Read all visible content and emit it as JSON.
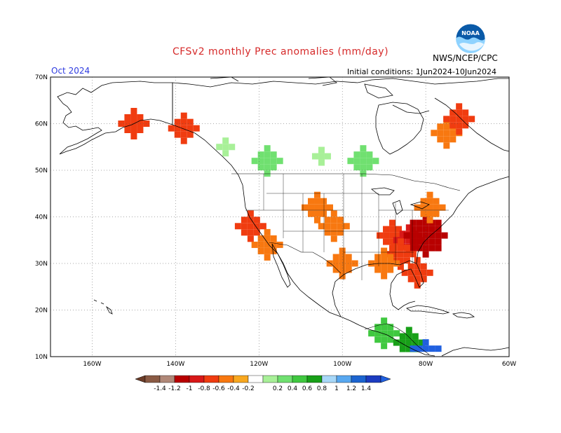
{
  "header": {
    "title": "CFSv2 monthly Prec anomalies (mm/day)",
    "org": "NWS/NCEP/CPC",
    "month": "Oct 2024",
    "init_conditions": "Initial conditions: 1Jun2024-10Jun2024",
    "logo_text": "NOAA"
  },
  "axes": {
    "lat_labels": [
      "70N",
      "60N",
      "50N",
      "40N",
      "30N",
      "20N",
      "10N"
    ],
    "lat_values": [
      70,
      60,
      50,
      40,
      30,
      20,
      10
    ],
    "lon_labels": [
      "160W",
      "140W",
      "120W",
      "100W",
      "80W",
      "60W"
    ],
    "lon_values": [
      -160,
      -140,
      -120,
      -100,
      -80,
      -60
    ],
    "lon_range": [
      -170,
      -60
    ],
    "lat_range": [
      10,
      70
    ]
  },
  "colorbar": {
    "labels": [
      "-1.4",
      "-1.2",
      "-1",
      "-0.8",
      "-0.6",
      "-0.4",
      "-0.2",
      "0.2",
      "0.4",
      "0.6",
      "0.8",
      "1",
      "1.2",
      "1.4"
    ],
    "colors": [
      "#8a5a44",
      "#b08878",
      "#b80000",
      "#d81818",
      "#f03c10",
      "#f87810",
      "#f8a820",
      "#ffffff",
      "#a8f098",
      "#70e070",
      "#40c840",
      "#18a018",
      "#a8d8f8",
      "#58a8f0",
      "#1c64d0",
      "#1c3cc0"
    ],
    "low_color": "#6b3c28",
    "high_color": "#2060e0"
  },
  "anomalies": [
    {
      "lon": -122,
      "lat": 38,
      "value": -0.6
    },
    {
      "lon": -118,
      "lat": 34,
      "value": -0.4
    },
    {
      "lon": -106,
      "lat": 42,
      "value": -0.4
    },
    {
      "lon": -102,
      "lat": 38,
      "value": -0.4
    },
    {
      "lon": -88,
      "lat": 36,
      "value": -0.6
    },
    {
      "lon": -84,
      "lat": 35,
      "value": -0.8
    },
    {
      "lon": -80,
      "lat": 36,
      "value": -1.0
    },
    {
      "lon": -86,
      "lat": 32,
      "value": -0.6
    },
    {
      "lon": -90,
      "lat": 30,
      "value": -0.4
    },
    {
      "lon": -82,
      "lat": 28,
      "value": -0.6
    },
    {
      "lon": -79,
      "lat": 42,
      "value": -0.4
    },
    {
      "lon": -100,
      "lat": 30,
      "value": -0.4
    },
    {
      "lon": -75,
      "lat": 58,
      "value": -0.4
    },
    {
      "lon": -72,
      "lat": 61,
      "value": -0.6
    },
    {
      "lon": -150,
      "lat": 60,
      "value": -0.6
    },
    {
      "lon": -138,
      "lat": 59,
      "value": -0.6
    },
    {
      "lon": -118,
      "lat": 52,
      "value": 0.4
    },
    {
      "lon": -105,
      "lat": 53,
      "value": 0.2
    },
    {
      "lon": -95,
      "lat": 52,
      "value": 0.4
    },
    {
      "lon": -128,
      "lat": 55,
      "value": 0.2
    },
    {
      "lon": -90,
      "lat": 15,
      "value": 0.6
    },
    {
      "lon": -84,
      "lat": 13,
      "value": 0.8
    },
    {
      "lon": -80,
      "lat": 9,
      "value": 1.4
    }
  ]
}
